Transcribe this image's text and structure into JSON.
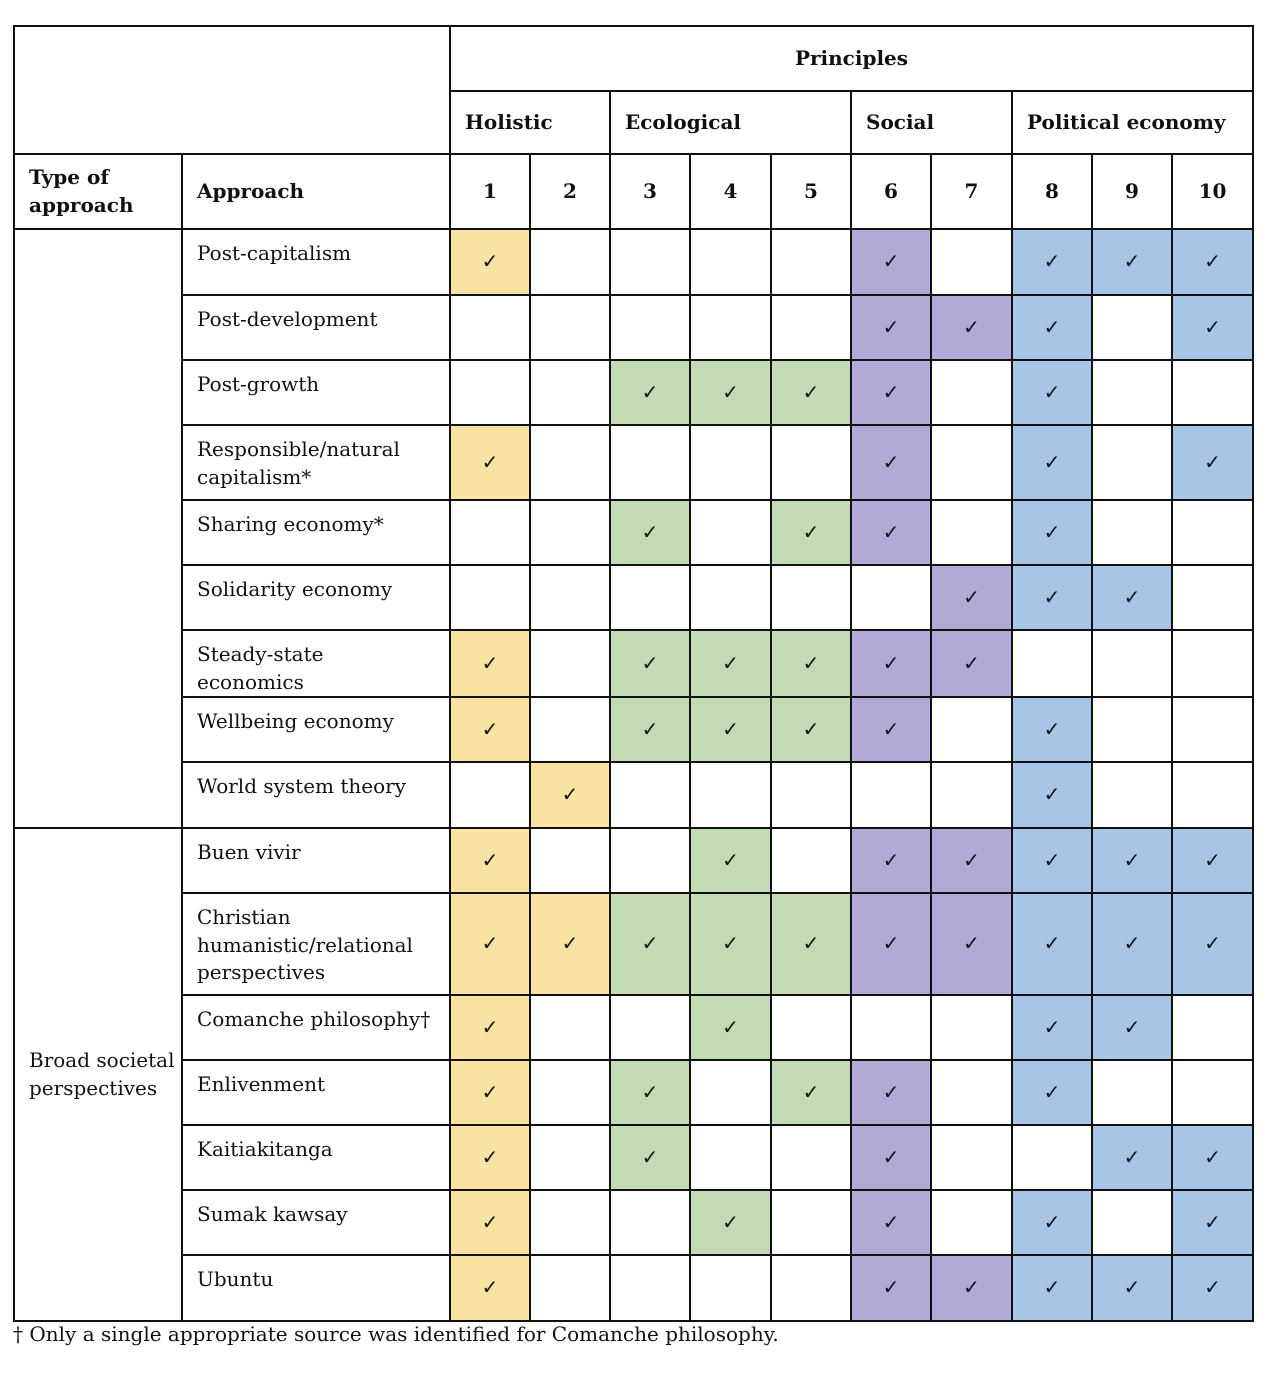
{
  "header": {
    "principles": "Principles",
    "groups": [
      {
        "label": "Holistic",
        "span": 2
      },
      {
        "label": "Ecological",
        "span": 3
      },
      {
        "label": "Social",
        "span": 2
      },
      {
        "label": "Political economy",
        "span": 3
      }
    ],
    "type_label": "Type of approach",
    "approach_label": "Approach",
    "numbers": [
      "1",
      "2",
      "3",
      "4",
      "5",
      "6",
      "7",
      "8",
      "9",
      "10"
    ]
  },
  "check_symbol": "✓",
  "colors": {
    "holistic": "#f9e3a3",
    "ecological": "#c2dbb4",
    "social": "#b3a9d6",
    "political_economy": "#a7c5e6"
  },
  "sections": [
    {
      "type": "",
      "rows": [
        {
          "name": "Post-capitalism",
          "checks": [
            1,
            0,
            0,
            0,
            0,
            1,
            0,
            1,
            1,
            1
          ]
        },
        {
          "name": "Post-development",
          "checks": [
            0,
            0,
            0,
            0,
            0,
            1,
            1,
            1,
            0,
            1
          ]
        },
        {
          "name": "Post-growth",
          "checks": [
            0,
            0,
            1,
            1,
            1,
            1,
            0,
            1,
            0,
            0
          ]
        },
        {
          "name": "Responsible/natural capitalism*",
          "checks": [
            1,
            0,
            0,
            0,
            0,
            1,
            0,
            1,
            0,
            1
          ]
        },
        {
          "name": "Sharing economy*",
          "checks": [
            0,
            0,
            1,
            0,
            1,
            1,
            0,
            1,
            0,
            0
          ]
        },
        {
          "name": "Solidarity economy",
          "checks": [
            0,
            0,
            0,
            0,
            0,
            0,
            1,
            1,
            1,
            0
          ]
        },
        {
          "name": "Steady-state economics",
          "checks": [
            1,
            0,
            1,
            1,
            1,
            1,
            1,
            0,
            0,
            0
          ]
        },
        {
          "name": "Wellbeing economy",
          "checks": [
            1,
            0,
            1,
            1,
            1,
            1,
            0,
            1,
            0,
            0
          ]
        },
        {
          "name": "World system theory",
          "checks": [
            0,
            1,
            0,
            0,
            0,
            0,
            0,
            1,
            0,
            0
          ]
        }
      ]
    },
    {
      "type": "Broad societal perspectives",
      "rows": [
        {
          "name": "Buen vivir",
          "checks": [
            1,
            0,
            0,
            1,
            0,
            1,
            1,
            1,
            1,
            1
          ]
        },
        {
          "name": "Christian humanistic/relational perspectives",
          "checks": [
            1,
            1,
            1,
            1,
            1,
            1,
            1,
            1,
            1,
            1
          ]
        },
        {
          "name": "Comanche philosophy†",
          "checks": [
            1,
            0,
            0,
            1,
            0,
            0,
            0,
            1,
            1,
            0
          ]
        },
        {
          "name": "Enlivenment",
          "checks": [
            1,
            0,
            1,
            0,
            1,
            1,
            0,
            1,
            0,
            0
          ]
        },
        {
          "name": "Kaitiakitanga",
          "checks": [
            1,
            0,
            1,
            0,
            0,
            1,
            0,
            0,
            1,
            1
          ]
        },
        {
          "name": "Sumak kawsay",
          "checks": [
            1,
            0,
            0,
            1,
            0,
            1,
            0,
            1,
            0,
            1
          ]
        },
        {
          "name": "Ubuntu",
          "checks": [
            1,
            0,
            0,
            0,
            0,
            1,
            1,
            1,
            1,
            1
          ]
        }
      ]
    }
  ],
  "footnote": "† Only a single appropriate source was identified for Comanche philosophy."
}
